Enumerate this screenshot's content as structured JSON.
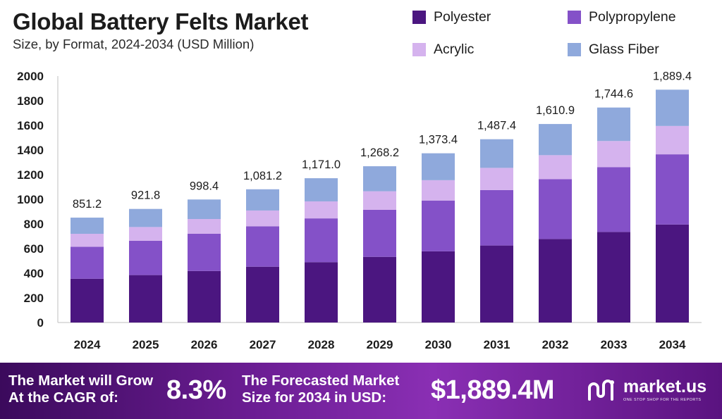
{
  "title": "Global Battery Felts Market",
  "subtitle": "Size, by Format, 2024-2034 (USD Million)",
  "legend": [
    {
      "label": "Polyester",
      "color": "#4b1680"
    },
    {
      "label": "Polypropylene",
      "color": "#8451c8"
    },
    {
      "label": "Acrylic",
      "color": "#d5b3ee"
    },
    {
      "label": "Glass Fiber",
      "color": "#8fa9dc"
    }
  ],
  "chart_data": {
    "type": "bar",
    "stacked": true,
    "categories": [
      "2024",
      "2025",
      "2026",
      "2027",
      "2028",
      "2029",
      "2030",
      "2031",
      "2032",
      "2033",
      "2034"
    ],
    "series": [
      {
        "name": "Polyester",
        "color": "#4b1680",
        "values": [
          355,
          385,
          418,
          453,
          490,
          533,
          578,
          625,
          678,
          735,
          795
        ]
      },
      {
        "name": "Polypropylene",
        "color": "#8451c8",
        "values": [
          260,
          278,
          302,
          328,
          355,
          382,
          412,
          450,
          485,
          525,
          570
        ]
      },
      {
        "name": "Acrylic",
        "color": "#d5b3ee",
        "values": [
          105,
          112,
          120,
          128,
          138,
          150,
          165,
          180,
          195,
          213,
          230
        ]
      },
      {
        "name": "Glass Fiber",
        "color": "#8fa9dc",
        "values": [
          131.2,
          146.8,
          158.4,
          172.2,
          188.0,
          203.2,
          218.4,
          232.4,
          252.9,
          271.6,
          294.4
        ]
      }
    ],
    "totals": [
      "851.2",
      "921.8",
      "998.4",
      "1,081.2",
      "1,171.0",
      "1,268.2",
      "1,373.4",
      "1,487.4",
      "1,610.9",
      "1,744.6",
      "1,889.4"
    ],
    "yticks": [
      "0",
      "200",
      "400",
      "600",
      "800",
      "1000",
      "1200",
      "1400",
      "1600",
      "1800",
      "2000"
    ],
    "ylim": [
      0,
      2000
    ],
    "grid": false,
    "legend_position": "top-right"
  },
  "banner": {
    "line1": "The Market will Grow At the CAGR of:",
    "cagr": "8.3%",
    "line2": "The Forecasted Market Size for 2034 in USD:",
    "value": "$1,889.4M",
    "brand": "market.us",
    "tagline": "ONE STOP SHOP FOR THE REPORTS"
  }
}
